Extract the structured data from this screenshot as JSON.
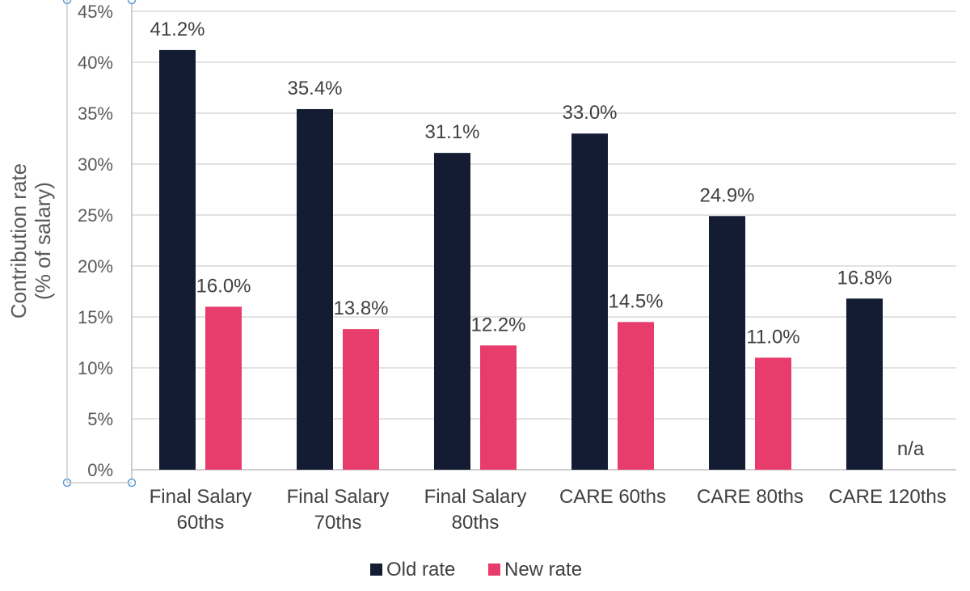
{
  "chart_data": {
    "type": "bar",
    "categories": [
      [
        "Final Salary",
        "60ths"
      ],
      [
        "Final Salary",
        "70ths"
      ],
      [
        "Final Salary",
        "80ths"
      ],
      [
        "CARE 60ths"
      ],
      [
        "CARE 80ths"
      ],
      [
        "CARE 120ths"
      ]
    ],
    "series": [
      {
        "name": "Old rate",
        "color": "#141c33",
        "values": [
          41.2,
          35.4,
          31.1,
          33.0,
          24.9,
          16.8
        ],
        "labels": [
          "41.2%",
          "35.4%",
          "31.1%",
          "33.0%",
          "24.9%",
          "16.8%"
        ]
      },
      {
        "name": "New rate",
        "color": "#e83d6c",
        "values": [
          16.0,
          13.8,
          12.2,
          14.5,
          11.0,
          null
        ],
        "labels": [
          "16.0%",
          "13.8%",
          "12.2%",
          "14.5%",
          "11.0%",
          "n/a"
        ]
      }
    ],
    "ylabel_lines": [
      "Contribution rate",
      "(% of salary)"
    ],
    "ylim": [
      0,
      45
    ],
    "yticks": [
      0,
      5,
      10,
      15,
      20,
      25,
      30,
      35,
      40,
      45
    ],
    "ytick_labels": [
      "0%",
      "5%",
      "10%",
      "15%",
      "20%",
      "25%",
      "30%",
      "35%",
      "40%",
      "45%"
    ],
    "grid": true,
    "legend_position": "bottom"
  }
}
